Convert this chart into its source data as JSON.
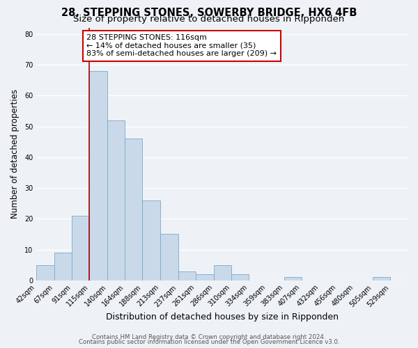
{
  "title": "28, STEPPING STONES, SOWERBY BRIDGE, HX6 4FB",
  "subtitle": "Size of property relative to detached houses in Ripponden",
  "xlabel": "Distribution of detached houses by size in Ripponden",
  "ylabel": "Number of detached properties",
  "bin_labels": [
    "42sqm",
    "67sqm",
    "91sqm",
    "115sqm",
    "140sqm",
    "164sqm",
    "188sqm",
    "213sqm",
    "237sqm",
    "261sqm",
    "286sqm",
    "310sqm",
    "334sqm",
    "359sqm",
    "383sqm",
    "407sqm",
    "432sqm",
    "456sqm",
    "480sqm",
    "505sqm",
    "529sqm"
  ],
  "bin_edges": [
    42,
    67,
    91,
    115,
    140,
    164,
    188,
    213,
    237,
    261,
    286,
    310,
    334,
    359,
    383,
    407,
    432,
    456,
    480,
    505,
    529
  ],
  "bar_heights": [
    5,
    9,
    21,
    68,
    52,
    46,
    26,
    15,
    3,
    2,
    5,
    2,
    0,
    0,
    1,
    0,
    0,
    0,
    0,
    1,
    0
  ],
  "bar_color": "#c9d9ea",
  "bar_edge_color": "#7aaac8",
  "vline_x": 115,
  "vline_color": "#aa0000",
  "annotation_title": "28 STEPPING STONES: 116sqm",
  "annotation_line1": "← 14% of detached houses are smaller (35)",
  "annotation_line2": "83% of semi-detached houses are larger (209) →",
  "annotation_box_color": "#ffffff",
  "annotation_box_edge": "#cc0000",
  "ylim": [
    0,
    82
  ],
  "yticks": [
    0,
    10,
    20,
    30,
    40,
    50,
    60,
    70,
    80
  ],
  "footer1": "Contains HM Land Registry data © Crown copyright and database right 2024.",
  "footer2": "Contains public sector information licensed under the Open Government Licence v3.0.",
  "background_color": "#eef2f7",
  "grid_color": "#ffffff",
  "title_fontsize": 10.5,
  "subtitle_fontsize": 9.5,
  "xlabel_fontsize": 9,
  "ylabel_fontsize": 8.5,
  "tick_fontsize": 7,
  "annotation_fontsize": 8,
  "footer_fontsize": 6.2
}
